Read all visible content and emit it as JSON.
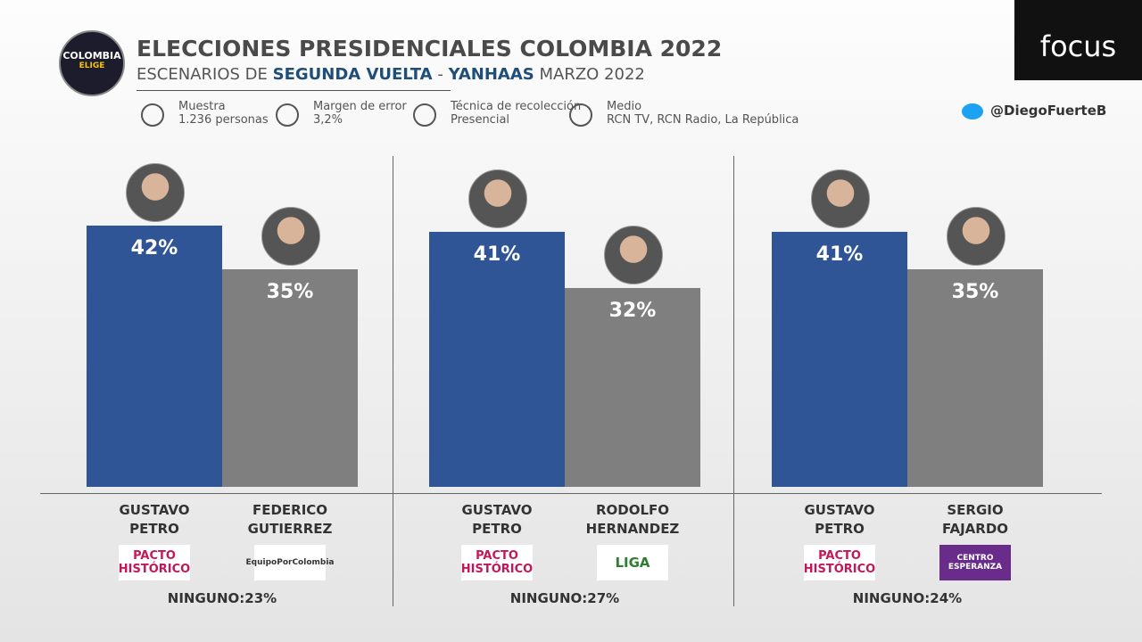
{
  "logo": {
    "name": "COLOMBIA",
    "tag": "ELIGE"
  },
  "brand": "focus",
  "twitter": "@DiegoFuerteB",
  "header": {
    "title": "ELECCIONES PRESIDENCIALES COLOMBIA 2022",
    "subtitle": [
      "ESCENARIOS DE ",
      "SEGUNDA VUELTA",
      " - ",
      "YANHAAS",
      " MARZO 2022"
    ]
  },
  "info": [
    {
      "label": "Muestra",
      "value": "1.236 personas"
    },
    {
      "label": "Margen de error",
      "value": "3,2%"
    },
    {
      "label": "Técnica de recolección",
      "value": "Presencial"
    },
    {
      "label": "Medio",
      "value": "RCN TV, RCN Radio, La República"
    }
  ],
  "chart_data": [
    {
      "type": "bar",
      "categories": [
        "GUSTAVO PETRO",
        "FEDERICO GUTIERREZ"
      ],
      "values": [
        42,
        35
      ],
      "value_labels": [
        "42%",
        "35%"
      ],
      "colors": [
        "#2f5597",
        "#7f7f7f"
      ],
      "parties": [
        "PACTO HISTÓRICO",
        "EquipoPorColombia"
      ],
      "note": "NINGUNO:23%"
    },
    {
      "type": "bar",
      "categories": [
        "GUSTAVO PETRO",
        "RODOLFO HERNANDEZ"
      ],
      "values": [
        41,
        32
      ],
      "value_labels": [
        "41%",
        "32%"
      ],
      "colors": [
        "#2f5597",
        "#7f7f7f"
      ],
      "parties": [
        "PACTO HISTÓRICO",
        "LIGA"
      ],
      "note": "NINGUNO:27%"
    },
    {
      "type": "bar",
      "categories": [
        "GUSTAVO PETRO",
        "SERGIO FAJARDO"
      ],
      "values": [
        41,
        35
      ],
      "value_labels": [
        "41%",
        "35%"
      ],
      "colors": [
        "#2f5597",
        "#7f7f7f"
      ],
      "parties": [
        "PACTO HISTÓRICO",
        "CENTRO ESPERANZA"
      ],
      "note": "NINGUNO:24%"
    }
  ]
}
